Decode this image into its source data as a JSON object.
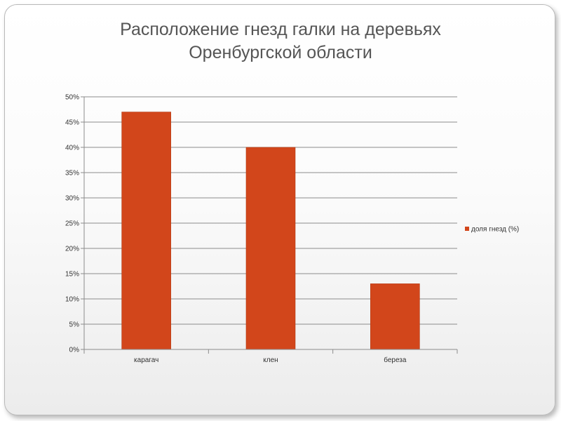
{
  "chart_data": {
    "type": "bar",
    "title_lines": [
      "Расположение гнезд галки на деревьях",
      "Оренбургской области"
    ],
    "categories": [
      "карагач",
      "клен",
      "береза"
    ],
    "series": [
      {
        "name": "доля гнезд (%)",
        "values": [
          47,
          40,
          13
        ],
        "color": "#d2461b"
      }
    ],
    "yticks": [
      "0%",
      "5%",
      "10%",
      "15%",
      "20%",
      "25%",
      "30%",
      "35%",
      "40%",
      "45%",
      "50%"
    ],
    "ylim": [
      0,
      50
    ],
    "grid": true,
    "legend_position": "right"
  }
}
